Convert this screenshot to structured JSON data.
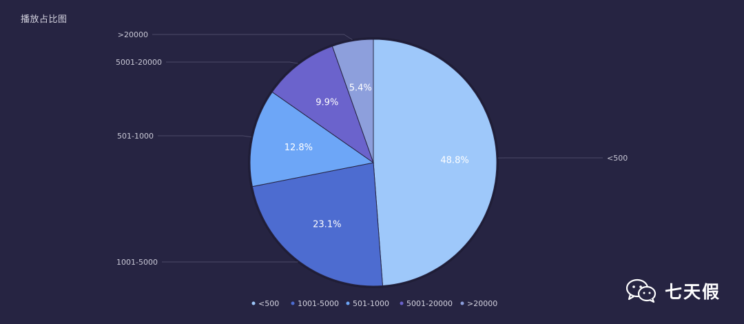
{
  "header": {
    "title": "播放占比图"
  },
  "watermark": {
    "text": "七天假",
    "icon": "wechat-icon"
  },
  "chart_data": {
    "type": "pie",
    "categories": [
      "<500",
      "1001-5000",
      "501-1000",
      "5001-20000",
      ">20000"
    ],
    "values": [
      48.8,
      23.1,
      12.8,
      9.9,
      5.4
    ],
    "labels": [
      "48.8%",
      "23.1%",
      "12.8%",
      "9.9%",
      "5.4%"
    ],
    "colors": [
      "#9ec8fa",
      "#4d6cd0",
      "#6da6f7",
      "#6b63cc",
      "#8d9fdc"
    ],
    "legend": {
      "placement": "bottom",
      "items": [
        "<500",
        "1001-5000",
        "501-1000",
        "5001-20000",
        ">20000"
      ]
    },
    "start_angle_deg": 0,
    "direction": "clockwise"
  }
}
